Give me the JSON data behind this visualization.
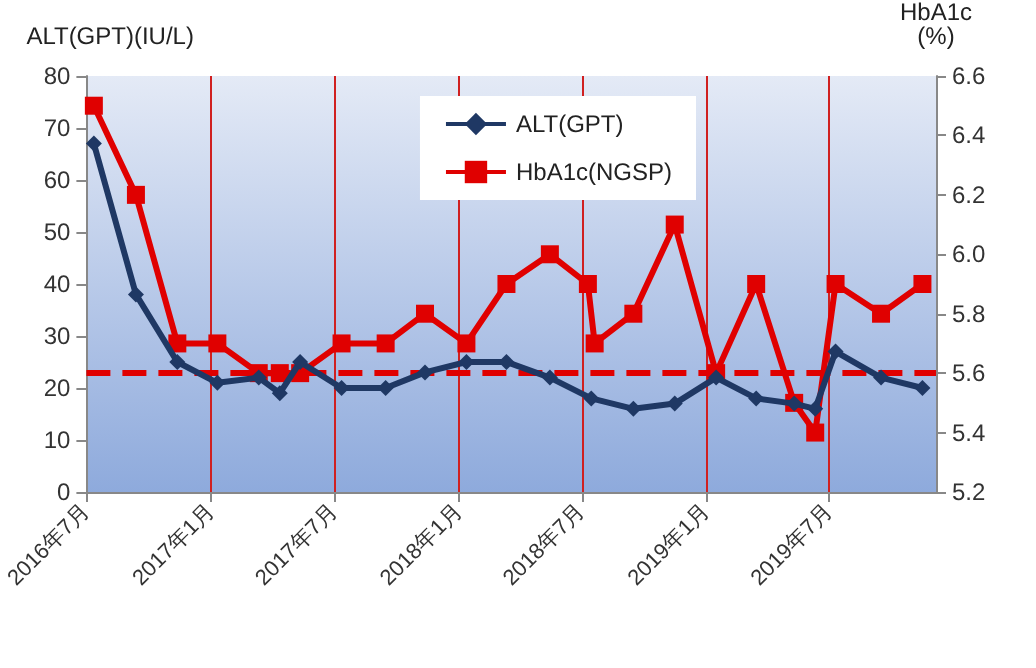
{
  "chart_data": {
    "type": "line",
    "ylabel": "ALT(GPT)(IU/L)",
    "y2label": "HbA1c\n(%)",
    "xlim": [
      "2016-07-01",
      "2019-12-05"
    ],
    "xticks": [
      {
        "value": "2016-07-01",
        "label": "2016年7月"
      },
      {
        "value": "2017-01-01",
        "label": "2017年1月"
      },
      {
        "value": "2017-07-01",
        "label": "2017年7月"
      },
      {
        "value": "2018-01-01",
        "label": "2018年1月"
      },
      {
        "value": "2018-07-01",
        "label": "2018年7月"
      },
      {
        "value": "2019-01-01",
        "label": "2019年1月"
      },
      {
        "value": "2019-07-01",
        "label": "2019年7月"
      }
    ],
    "ylim": [
      0,
      80
    ],
    "yticks": [
      0,
      10,
      20,
      30,
      40,
      50,
      60,
      70,
      80
    ],
    "y2lim": [
      5.2,
      6.6
    ],
    "y2ticks": [
      {
        "value": 5.2,
        "label": "5.2"
      },
      {
        "value": 5.4,
        "label": "5.4"
      },
      {
        "value": 5.6,
        "label": "5.6"
      },
      {
        "value": 5.8,
        "label": "5.8"
      },
      {
        "value": 6.0,
        "label": "6.0"
      },
      {
        "value": 6.2,
        "label": "6.2"
      },
      {
        "value": 6.4,
        "label": "6.4"
      },
      {
        "value": 6.6,
        "label": "6.6"
      }
    ],
    "grid": "x",
    "legend": "top right",
    "series": [
      {
        "name": "ALT(GPT)",
        "color": "#1f3864",
        "marker": "diamond",
        "x": [
          "2016-07-12",
          "2016-09-12",
          "2016-11-12",
          "2017-01-10",
          "2017-03-12",
          "2017-04-12",
          "2017-05-12",
          "2017-07-12",
          "2017-09-15",
          "2017-11-12",
          "2018-01-12",
          "2018-03-12",
          "2018-05-15",
          "2018-07-15",
          "2018-09-15",
          "2018-11-15",
          "2019-01-15",
          "2019-03-15",
          "2019-05-10",
          "2019-06-10",
          "2019-07-10",
          "2019-09-15",
          "2019-11-15"
        ],
        "values": [
          67,
          38,
          25,
          21,
          22,
          19,
          25,
          20,
          20,
          23,
          25,
          25,
          22,
          18,
          16,
          17,
          22,
          18,
          17,
          16,
          27,
          22,
          20
        ]
      },
      {
        "name": "HbA1c(NGSP)",
        "color": "#e00000",
        "marker": "square",
        "axis": "y2",
        "x": [
          "2016-07-12",
          "2016-09-12",
          "2016-11-12",
          "2017-01-10",
          "2017-03-12",
          "2017-04-12",
          "2017-05-12",
          "2017-07-12",
          "2017-09-15",
          "2017-11-12",
          "2018-01-12",
          "2018-03-12",
          "2018-05-15",
          "2018-07-10",
          "2018-07-20",
          "2018-09-15",
          "2018-11-15",
          "2019-01-15",
          "2019-03-15",
          "2019-05-10",
          "2019-06-10",
          "2019-07-10",
          "2019-09-15",
          "2019-11-15"
        ],
        "values": [
          6.5,
          6.2,
          5.7,
          5.7,
          5.6,
          5.6,
          5.6,
          5.7,
          5.7,
          5.8,
          5.7,
          5.9,
          6.0,
          5.9,
          5.7,
          5.8,
          6.1,
          5.6,
          5.9,
          5.5,
          5.4,
          5.9,
          5.8,
          5.9
        ]
      }
    ],
    "ref_lines": [
      {
        "axis": "y2",
        "value": 5.6,
        "color": "#e00000",
        "line_style": "dashed"
      }
    ]
  }
}
